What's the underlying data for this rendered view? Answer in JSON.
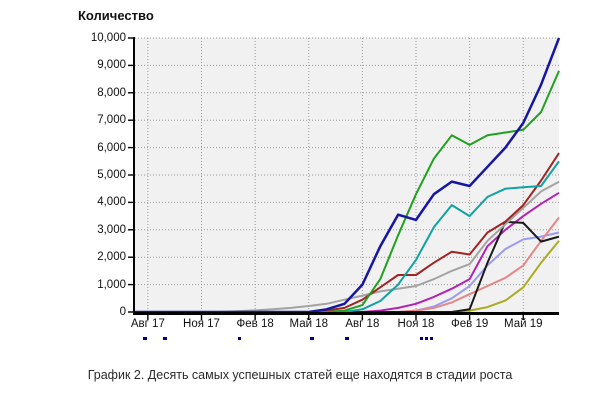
{
  "title": "Количество",
  "caption": "График 2. Десять самых успешных статей еще находятся в стадии роста",
  "clipped_row": {
    "color": "#000080",
    "fragments": [
      {
        "x": 143,
        "w": 4
      },
      {
        "x": 163,
        "w": 4
      },
      {
        "x": 238,
        "w": 3
      },
      {
        "x": 310,
        "w": 4
      },
      {
        "x": 345,
        "w": 4
      },
      {
        "x": 420,
        "w": 3
      },
      {
        "x": 425,
        "w": 3
      },
      {
        "x": 430,
        "w": 3
      }
    ]
  },
  "chart_data": {
    "type": "line",
    "title": "Количество",
    "xlabel": "",
    "ylabel": "Количество",
    "ylim": [
      0,
      10000
    ],
    "grid": "dotted",
    "legend_position": "clipped-off-bottom",
    "y_tick_labels": [
      "0",
      "1,000",
      "2,000",
      "3,000",
      "4,000",
      "5,000",
      "6,000",
      "7,000",
      "8,000",
      "9,000",
      "10,000"
    ],
    "x_tick_labels": [
      "Авг 17",
      "Ноя 17",
      "Фев 18",
      "Май 18",
      "Авг 18",
      "Ноя 18",
      "Фев 19",
      "Май 19"
    ],
    "x_tick_month_index": [
      1,
      4,
      7,
      10,
      13,
      16,
      19,
      22
    ],
    "x_months": [
      "2017-07",
      "2017-08",
      "2017-09",
      "2017-10",
      "2017-11",
      "2017-12",
      "2018-01",
      "2018-02",
      "2018-03",
      "2018-04",
      "2018-05",
      "2018-06",
      "2018-07",
      "2018-08",
      "2018-09",
      "2018-10",
      "2018-11",
      "2018-12",
      "2019-01",
      "2019-02",
      "2019-03",
      "2019-04",
      "2019-05",
      "2019-06",
      "2019-07"
    ],
    "series": [
      {
        "name": "series-olive",
        "color": "#abab24",
        "width": 2,
        "values": [
          0,
          0,
          0,
          0,
          0,
          0,
          0,
          0,
          0,
          0,
          0,
          0,
          0,
          0,
          0,
          0,
          0,
          0,
          0,
          50,
          180,
          420,
          900,
          1800,
          2600
        ]
      },
      {
        "name": "series-violet",
        "color": "#9b9bf0",
        "width": 2,
        "values": [
          0,
          0,
          0,
          0,
          0,
          0,
          0,
          0,
          0,
          0,
          0,
          0,
          0,
          0,
          0,
          0,
          50,
          200,
          500,
          950,
          1700,
          2300,
          2650,
          2750,
          2900
        ]
      },
      {
        "name": "series-salmon",
        "color": "#e88686",
        "width": 2,
        "values": [
          0,
          0,
          0,
          0,
          0,
          0,
          0,
          0,
          0,
          0,
          0,
          0,
          0,
          0,
          0,
          0,
          50,
          150,
          350,
          650,
          950,
          1250,
          1700,
          2600,
          3450
        ]
      },
      {
        "name": "series-magenta",
        "color": "#b322b3",
        "width": 2,
        "values": [
          0,
          0,
          0,
          0,
          0,
          0,
          0,
          0,
          0,
          0,
          0,
          0,
          0,
          0,
          50,
          150,
          300,
          550,
          850,
          1200,
          2400,
          3000,
          3500,
          3950,
          4350
        ]
      },
      {
        "name": "series-black",
        "color": "#1a1a1a",
        "width": 2,
        "values": [
          0,
          0,
          0,
          0,
          0,
          0,
          0,
          0,
          0,
          0,
          0,
          0,
          0,
          0,
          0,
          0,
          0,
          0,
          0,
          100,
          1800,
          3290,
          3250,
          2570,
          2750
        ]
      },
      {
        "name": "series-gray",
        "color": "#a3a3a3",
        "width": 2,
        "values": [
          0,
          0,
          0,
          0,
          0,
          0,
          30,
          60,
          100,
          150,
          220,
          300,
          450,
          600,
          750,
          850,
          950,
          1200,
          1500,
          1750,
          2600,
          3200,
          3800,
          4400,
          4750
        ]
      },
      {
        "name": "series-darkred",
        "color": "#a32222",
        "width": 2,
        "values": [
          0,
          0,
          0,
          0,
          0,
          0,
          0,
          0,
          0,
          0,
          0,
          50,
          150,
          450,
          900,
          1350,
          1350,
          1800,
          2200,
          2100,
          2900,
          3300,
          3900,
          4800,
          5800
        ]
      },
      {
        "name": "series-teal",
        "color": "#0fa3a3",
        "width": 2,
        "values": [
          0,
          0,
          0,
          0,
          0,
          0,
          0,
          0,
          0,
          0,
          0,
          0,
          0,
          100,
          400,
          1000,
          1900,
          3100,
          3900,
          3500,
          4200,
          4500,
          4550,
          4600,
          5500
        ]
      },
      {
        "name": "series-green",
        "color": "#21a121",
        "width": 2,
        "values": [
          0,
          0,
          0,
          0,
          0,
          0,
          0,
          0,
          0,
          0,
          0,
          0,
          50,
          250,
          1200,
          2800,
          4300,
          5600,
          6450,
          6100,
          6450,
          6550,
          6650,
          7300,
          8800
        ]
      },
      {
        "name": "series-navy",
        "color": "#1616a3",
        "width": 2.5,
        "values": [
          0,
          0,
          0,
          0,
          0,
          0,
          0,
          0,
          0,
          0,
          0,
          100,
          300,
          1000,
          2400,
          3550,
          3360,
          4300,
          4760,
          4600,
          5300,
          6000,
          6900,
          8300,
          10000
        ]
      }
    ]
  }
}
